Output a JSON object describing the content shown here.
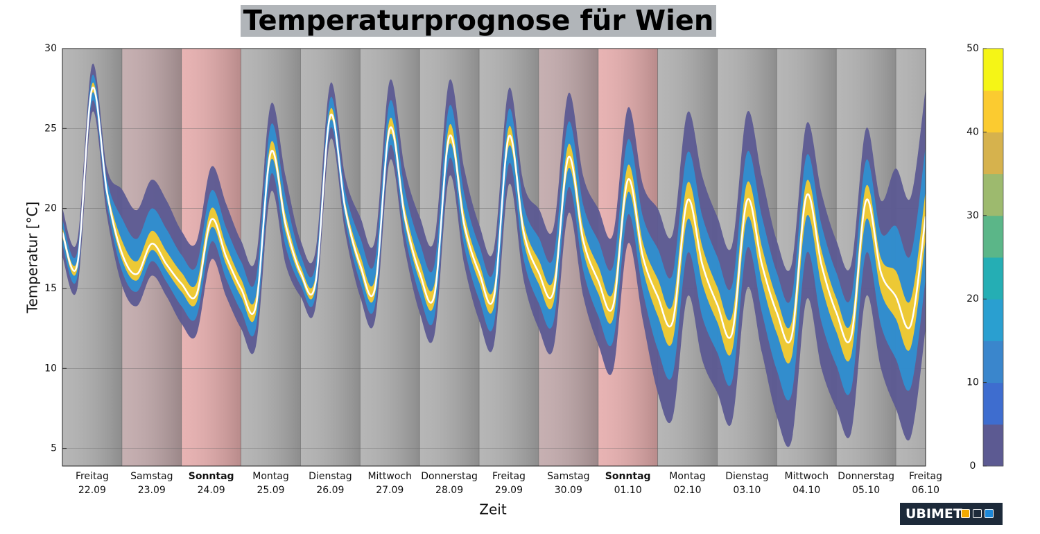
{
  "chart_data": {
    "type": "fan",
    "title": "Temperaturprognose für Wien",
    "xlabel": "Zeit",
    "ylabel": "Temperatur [°C]",
    "logo": "UBIMET",
    "xlim": [
      0,
      14.5
    ],
    "ylim": [
      3.9,
      30
    ],
    "yticks": [
      5,
      10,
      15,
      20,
      25,
      30
    ],
    "grid": true,
    "days": [
      {
        "name": "Freitag",
        "date": "22.09",
        "bold": false,
        "color": "#b0b0b0"
      },
      {
        "name": "Samstag",
        "date": "23.09",
        "bold": false,
        "color": "#c2a9ab"
      },
      {
        "name": "Sonntag",
        "date": "24.09",
        "bold": true,
        "color": "#e6adad"
      },
      {
        "name": "Montag",
        "date": "25.09",
        "bold": false,
        "color": "#b0b0b0"
      },
      {
        "name": "Dienstag",
        "date": "26.09",
        "bold": false,
        "color": "#b0b0b0"
      },
      {
        "name": "Mittwoch",
        "date": "27.09",
        "bold": false,
        "color": "#b0b0b0"
      },
      {
        "name": "Donnerstag",
        "date": "28.09",
        "bold": false,
        "color": "#b0b0b0"
      },
      {
        "name": "Freitag",
        "date": "29.09",
        "bold": false,
        "color": "#b0b0b0"
      },
      {
        "name": "Samstag",
        "date": "30.09",
        "bold": false,
        "color": "#c2a9ab"
      },
      {
        "name": "Sonntag",
        "date": "01.10",
        "bold": true,
        "color": "#e6adad"
      },
      {
        "name": "Montag",
        "date": "02.10",
        "bold": false,
        "color": "#b0b0b0"
      },
      {
        "name": "Dienstag",
        "date": "03.10",
        "bold": false,
        "color": "#b0b0b0"
      },
      {
        "name": "Mittwoch",
        "date": "04.10",
        "bold": false,
        "color": "#b0b0b0"
      },
      {
        "name": "Donnerstag",
        "date": "05.10",
        "bold": false,
        "color": "#b0b0b0"
      },
      {
        "name": "Freitag",
        "date": "06.10",
        "bold": false,
        "color": "#b0b0b0"
      }
    ],
    "x": [
      0,
      0.25,
      0.5,
      0.75,
      1,
      1.25,
      1.5,
      1.75,
      2,
      2.25,
      2.5,
      2.75,
      3,
      3.25,
      3.5,
      3.75,
      4,
      4.25,
      4.5,
      4.75,
      5,
      5.25,
      5.5,
      5.75,
      6,
      6.25,
      6.5,
      6.75,
      7,
      7.25,
      7.5,
      7.75,
      8,
      8.25,
      8.5,
      8.75,
      9,
      9.25,
      9.5,
      9.75,
      10,
      10.25,
      10.5,
      10.75,
      11,
      11.25,
      11.5,
      11.75,
      12,
      12.25,
      12.5,
      12.75,
      13,
      13.25,
      13.5,
      13.75,
      14,
      14.25,
      14.5
    ],
    "bands": [
      {
        "color": "#5c5a92",
        "low": [
          17,
          15,
          26,
          19.5,
          15.2,
          13.9,
          15.8,
          14.5,
          12.8,
          12.1,
          16.8,
          14.5,
          12.5,
          11.4,
          21,
          16.5,
          14.5,
          13.8,
          24.3,
          18.5,
          14.5,
          13,
          23,
          17.5,
          13.5,
          12.1,
          22,
          16.5,
          13,
          11.5,
          21.5,
          15.5,
          12.5,
          11.3,
          19.7,
          14.5,
          11.5,
          9.9,
          17.8,
          13,
          8.5,
          6.9,
          14.5,
          10.5,
          8.5,
          6.7,
          15,
          11,
          7,
          5.5,
          14.3,
          10,
          7.5,
          6,
          14.5,
          10,
          7.5,
          5.7,
          12.5
        ],
        "high": [
          20,
          18,
          29,
          22.5,
          21.2,
          19.9,
          21.8,
          20.5,
          18.6,
          17.9,
          22.6,
          20.3,
          18,
          16.9,
          26.5,
          22,
          18,
          17.3,
          27.8,
          22,
          19.5,
          18,
          28,
          22.5,
          19.5,
          18.1,
          28,
          22.5,
          19,
          17.5,
          27.5,
          21.5,
          20,
          18.8,
          27.2,
          22,
          20,
          18.4,
          26.3,
          21.5,
          20,
          18.4,
          26,
          22,
          19.5,
          17.7,
          26,
          22,
          18,
          16.5,
          25.3,
          21,
          18,
          16.5,
          25,
          20.5,
          22.5,
          20.7,
          27.5
        ]
      },
      {
        "color": "#2f8fd0",
        "low": [
          17.7,
          15.7,
          26.7,
          20.2,
          16.1,
          14.8,
          16.7,
          15.4,
          13.9,
          13.2,
          17.9,
          15.6,
          13.6,
          12.5,
          22.1,
          17.6,
          15.2,
          14.5,
          25,
          19.2,
          15.4,
          13.9,
          23.9,
          18.4,
          14.6,
          13.2,
          23.1,
          17.6,
          14.3,
          12.8,
          22.8,
          16.8,
          14.1,
          12.9,
          21.3,
          16.1,
          13.3,
          11.7,
          19.6,
          14.8,
          11.2,
          9.6,
          17.2,
          13.2,
          11,
          9.2,
          17.5,
          13.5,
          9.9,
          8.4,
          17.2,
          12.9,
          10.2,
          8.7,
          17.2,
          12.7,
          10.6,
          8.8,
          15.6
        ],
        "high": [
          19.3,
          17.3,
          28.3,
          21.8,
          19.4,
          18.1,
          20,
          18.7,
          17.1,
          16.4,
          21.1,
          18.8,
          16.7,
          15.6,
          25.2,
          20.7,
          17.1,
          16.4,
          26.9,
          21.1,
          18.2,
          16.7,
          26.7,
          21.2,
          17.9,
          16.5,
          26.4,
          20.9,
          17.7,
          16.2,
          26.2,
          20.2,
          18.2,
          17,
          25.4,
          20.2,
          18,
          16.4,
          24.3,
          19.5,
          17.5,
          15.9,
          23.5,
          19.5,
          17,
          15.2,
          23.5,
          19.5,
          16,
          14.5,
          23.3,
          19,
          16,
          14.5,
          23,
          18.5,
          18.9,
          17.1,
          23.9
        ]
      },
      {
        "color": "#f8cc2c",
        "low": [
          18.2,
          16.2,
          27.2,
          20.7,
          16.8,
          15.5,
          17.4,
          16.1,
          14.8,
          14.1,
          18.8,
          16.5,
          14.5,
          13.4,
          23,
          18.5,
          15.7,
          15,
          25.5,
          19.7,
          16.1,
          14.6,
          24.6,
          19.1,
          15.5,
          14.1,
          24,
          18.5,
          15.4,
          13.9,
          23.9,
          17.9,
          15.3,
          14.1,
          22.5,
          17.3,
          14.7,
          13.1,
          21,
          16.2,
          13.3,
          11.7,
          19.3,
          15.3,
          12.9,
          11.1,
          19.4,
          15.4,
          12.2,
          10.7,
          19.5,
          15.2,
          12.3,
          10.8,
          19.3,
          14.8,
          13.1,
          11.3,
          18.1
        ],
        "high": [
          18.8,
          16.8,
          27.8,
          21.3,
          18,
          16.7,
          18.6,
          17.3,
          16,
          15.3,
          20,
          17.7,
          15.6,
          14.5,
          24.1,
          19.6,
          16.4,
          15.7,
          26.2,
          20.4,
          17.1,
          15.6,
          25.6,
          20.1,
          16.7,
          15.3,
          25.2,
          19.7,
          16.6,
          15.1,
          25.1,
          19.1,
          16.8,
          15.6,
          24,
          18.8,
          16.4,
          14.8,
          22.7,
          17.9,
          15.6,
          14,
          21.6,
          17.6,
          15.1,
          13.3,
          21.6,
          17.6,
          14.4,
          12.9,
          21.7,
          17.4,
          14.4,
          12.9,
          21.4,
          16.9,
          16.1,
          14.3,
          21.1
        ]
      }
    ],
    "median": {
      "color": "#ffffff",
      "values": [
        18.5,
        16.5,
        27.5,
        21,
        17.2,
        15.9,
        17.8,
        16.5,
        15.3,
        14.6,
        19.3,
        17,
        15,
        13.9,
        23.5,
        19,
        16,
        15.3,
        25.8,
        20,
        16.5,
        15,
        25,
        19.5,
        16,
        14.6,
        24.5,
        19,
        16,
        14.5,
        24.5,
        18.5,
        16,
        14.8,
        23.2,
        18,
        15.5,
        13.9,
        21.8,
        17,
        14.5,
        12.9,
        20.5,
        16.5,
        14,
        12.2,
        20.5,
        16.5,
        13.5,
        12,
        20.8,
        16.5,
        13.5,
        12,
        20.5,
        16,
        14.5,
        12.7,
        19.5
      ]
    },
    "colorbar": {
      "lim": [
        0,
        50
      ],
      "ticks": [
        0,
        10,
        20,
        30,
        40,
        50
      ],
      "colors": [
        "#5c5a92",
        "#3e6dcf",
        "#3a86cc",
        "#2a9fd0",
        "#25aeb4",
        "#5bb688",
        "#9dba6e",
        "#d6b24d",
        "#fbcb30",
        "#f5f516"
      ]
    }
  }
}
